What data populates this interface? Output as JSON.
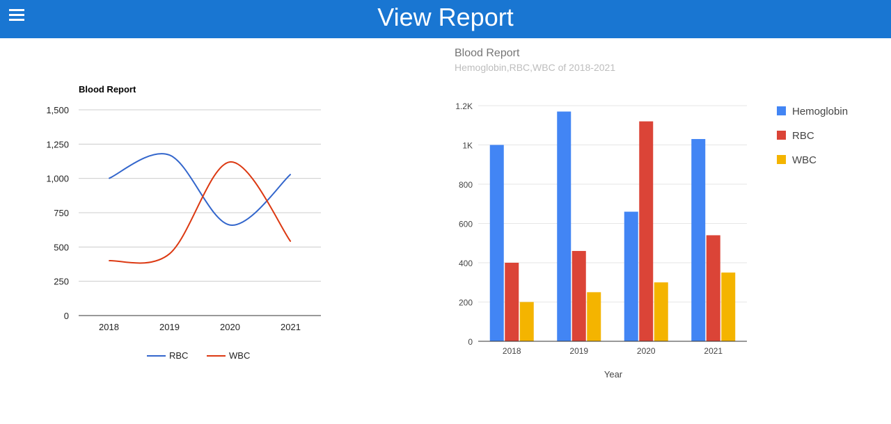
{
  "header": {
    "title": "View Report",
    "menu_icon": "hamburger-menu-icon",
    "background_color": "#1976d2"
  },
  "chart_data": [
    {
      "type": "line",
      "title": "Blood Report",
      "categories": [
        "2018",
        "2019",
        "2020",
        "2021"
      ],
      "y_ticks": [
        "0",
        "250",
        "500",
        "750",
        "1,000",
        "1,250",
        "1,500"
      ],
      "ylim": [
        0,
        1500
      ],
      "smooth": true,
      "grid": true,
      "legend_position": "bottom",
      "series": [
        {
          "name": "RBC",
          "color": "#3366cc",
          "values": [
            1000,
            1170,
            660,
            1030
          ]
        },
        {
          "name": "WBC",
          "color": "#dc3912",
          "values": [
            400,
            450,
            1120,
            540
          ]
        }
      ]
    },
    {
      "type": "bar",
      "title": "Blood Report",
      "subtitle": "Hemoglobin,RBC,WBC of 2018-2021",
      "xlabel": "Year",
      "categories": [
        "2018",
        "2019",
        "2020",
        "2021"
      ],
      "y_ticks": [
        "0",
        "200",
        "400",
        "600",
        "800",
        "1K",
        "1.2K"
      ],
      "ylim": [
        0,
        1200
      ],
      "grid": true,
      "legend_position": "right",
      "series": [
        {
          "name": "Hemoglobin",
          "color": "#4285f4",
          "values": [
            1000,
            1170,
            660,
            1030
          ]
        },
        {
          "name": "RBC",
          "color": "#db4437",
          "values": [
            400,
            460,
            1120,
            540
          ]
        },
        {
          "name": "WBC",
          "color": "#f4b400",
          "values": [
            200,
            250,
            300,
            350
          ]
        }
      ]
    }
  ]
}
